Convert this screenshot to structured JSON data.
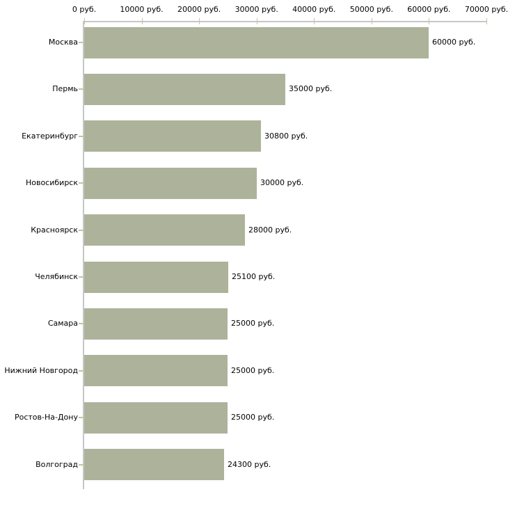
{
  "chart_data": {
    "type": "bar",
    "orientation": "horizontal",
    "title": "",
    "categories": [
      "Москва",
      "Пермь",
      "Екатеринбург",
      "Новосибирск",
      "Красноярск",
      "Челябинск",
      "Самара",
      "Нижний Новгород",
      "Ростов-На-Дону",
      "Волгоград"
    ],
    "values": [
      60000,
      35000,
      30800,
      30000,
      28000,
      25100,
      25000,
      25000,
      25000,
      24300
    ],
    "value_labels": [
      "60000 руб.",
      "35000 руб.",
      "30800 руб.",
      "30000 руб.",
      "28000 руб.",
      "25100 руб.",
      "25000 руб.",
      "25000 руб.",
      "25000 руб.",
      "24300 руб."
    ],
    "x_axis": {
      "position": "top",
      "min": 0,
      "max": 70000,
      "tick_interval": 10000,
      "tick_values": [
        0,
        10000,
        20000,
        30000,
        40000,
        50000,
        60000,
        70000
      ],
      "tick_labels": [
        "0 руб.",
        "10000 руб.",
        "20000 руб.",
        "30000 руб.",
        "40000 руб.",
        "50000 руб.",
        "60000 руб.",
        "70000 руб."
      ]
    },
    "ylabel": "",
    "xlabel": "",
    "grid": false,
    "legend": false,
    "colors": {
      "bar": "#adb39a",
      "axis_line": "#c6c6c6",
      "tick": "#c2c4a0",
      "text": "#000000",
      "background": "#ffffff"
    }
  }
}
